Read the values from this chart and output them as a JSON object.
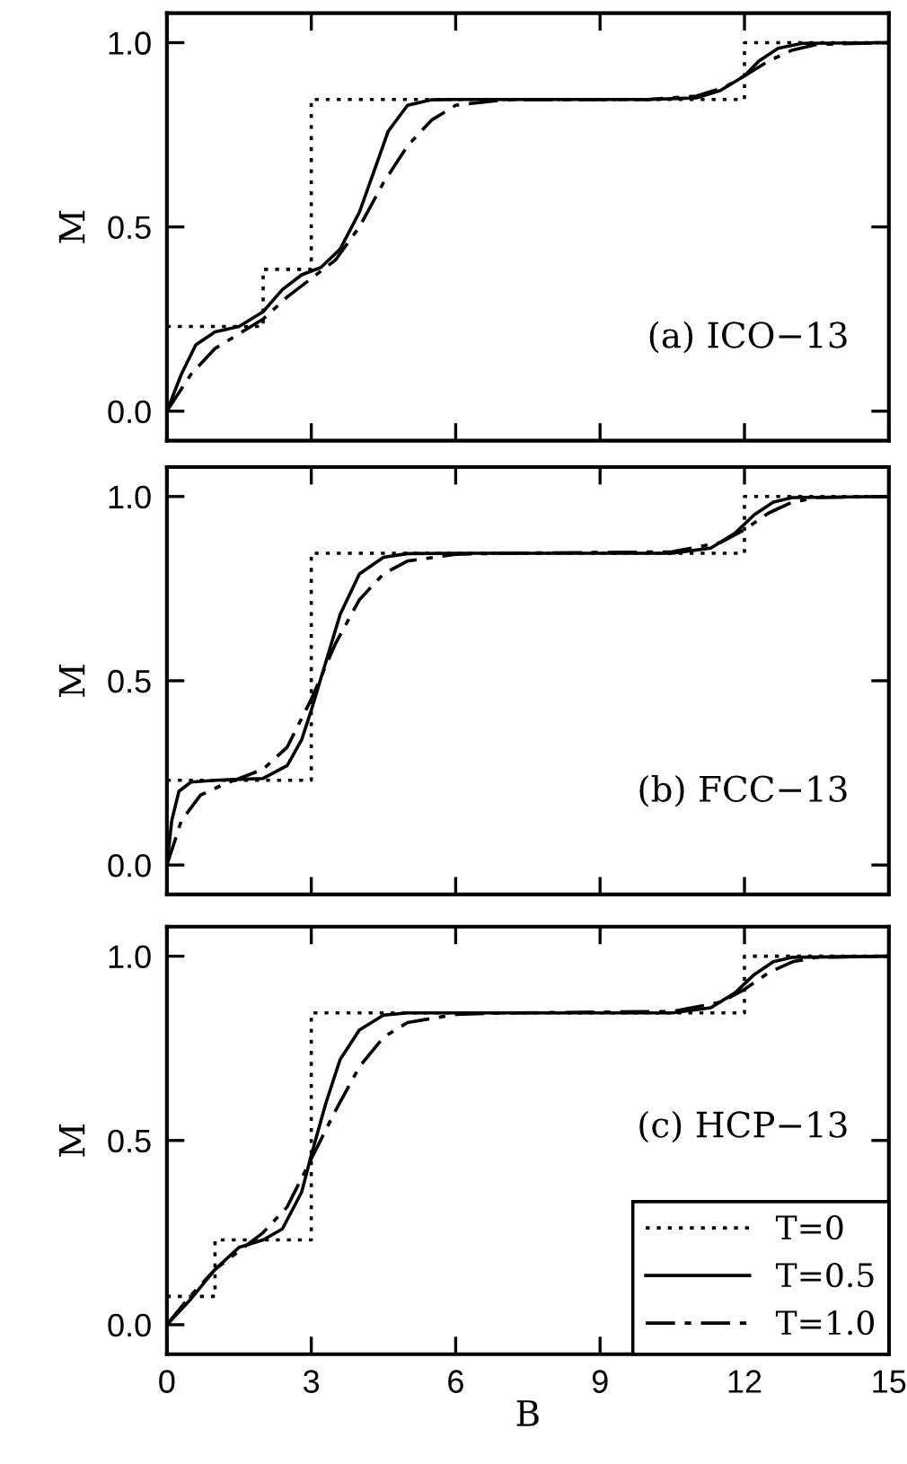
{
  "chart_data": [
    {
      "type": "line",
      "ylabel": "M",
      "xlim": [
        0,
        15
      ],
      "ylim": [
        -0.08,
        1.08
      ],
      "xticks": [
        0,
        3,
        6,
        9,
        12,
        15
      ],
      "yticks": [
        {
          "value": 0,
          "label": "0.0"
        },
        {
          "value": 0.5,
          "label": "0.5"
        },
        {
          "value": 1,
          "label": "1.0"
        }
      ],
      "tick_labels": "y",
      "grid": false,
      "legend": false,
      "annotations": [
        "(a) ICO−13"
      ],
      "series": [
        {
          "type": "step",
          "line_style": "dotted",
          "color": "#000000",
          "x": [
            0,
            2,
            3,
            12,
            15
          ],
          "values": [
            0.23,
            0.385,
            0.846,
            1.0,
            1.0
          ]
        },
        {
          "line_style": "solid",
          "color": "#000000",
          "x": [
            0,
            0.3,
            0.6,
            1,
            1.5,
            2,
            2.4,
            2.8,
            3.2,
            3.6,
            4,
            4.3,
            4.6,
            5,
            5.5,
            6,
            10,
            11,
            11.5,
            12,
            12.3,
            12.7,
            13.2,
            15
          ],
          "values": [
            0,
            0.1,
            0.18,
            0.215,
            0.23,
            0.27,
            0.33,
            0.37,
            0.39,
            0.44,
            0.54,
            0.65,
            0.76,
            0.83,
            0.845,
            0.846,
            0.846,
            0.85,
            0.87,
            0.91,
            0.95,
            0.985,
            0.998,
            1.0
          ]
        },
        {
          "line_style": "dashed",
          "color": "#000000",
          "x": [
            0,
            0.5,
            1,
            1.5,
            2,
            2.5,
            3,
            3.5,
            4,
            4.5,
            5,
            5.5,
            6,
            7,
            10,
            11,
            11.6,
            12,
            12.5,
            13,
            13.5,
            15
          ],
          "values": [
            0,
            0.1,
            0.17,
            0.21,
            0.25,
            0.31,
            0.36,
            0.41,
            0.5,
            0.62,
            0.72,
            0.79,
            0.83,
            0.845,
            0.846,
            0.855,
            0.88,
            0.91,
            0.95,
            0.98,
            0.995,
            1.0
          ]
        }
      ]
    },
    {
      "type": "line",
      "ylabel": "M",
      "xlim": [
        0,
        15
      ],
      "ylim": [
        -0.08,
        1.08
      ],
      "xticks": [
        0,
        3,
        6,
        9,
        12,
        15
      ],
      "yticks": [
        {
          "value": 0,
          "label": "0.0"
        },
        {
          "value": 0.5,
          "label": "0.5"
        },
        {
          "value": 1,
          "label": "1.0"
        }
      ],
      "tick_labels": "y",
      "grid": false,
      "legend": false,
      "annotations": [
        "(b) FCC−13"
      ],
      "series": [
        {
          "type": "step",
          "line_style": "dotted",
          "color": "#000000",
          "x": [
            0,
            3,
            12,
            15
          ],
          "values": [
            0.23,
            0.846,
            1.0,
            1.0
          ]
        },
        {
          "line_style": "solid",
          "color": "#000000",
          "x": [
            0,
            0.1,
            0.25,
            0.5,
            1,
            2,
            2.5,
            2.8,
            3,
            3.3,
            3.6,
            4,
            4.5,
            5,
            6,
            10.5,
            11.3,
            11.8,
            12.2,
            12.6,
            13,
            15
          ],
          "values": [
            0,
            0.12,
            0.2,
            0.225,
            0.23,
            0.235,
            0.27,
            0.34,
            0.42,
            0.55,
            0.68,
            0.79,
            0.835,
            0.845,
            0.846,
            0.846,
            0.86,
            0.9,
            0.95,
            0.985,
            0.997,
            1.0
          ]
        },
        {
          "line_style": "dashed",
          "color": "#000000",
          "x": [
            0,
            0.3,
            0.7,
            1.2,
            2,
            2.5,
            3,
            3.5,
            4,
            4.5,
            5,
            6,
            7,
            10.5,
            11.5,
            12,
            12.5,
            13,
            13.5,
            15
          ],
          "values": [
            0,
            0.12,
            0.19,
            0.22,
            0.26,
            0.32,
            0.45,
            0.6,
            0.72,
            0.79,
            0.825,
            0.843,
            0.846,
            0.85,
            0.875,
            0.91,
            0.955,
            0.985,
            0.997,
            1.0
          ]
        }
      ]
    },
    {
      "type": "line",
      "xlabel": "B",
      "ylabel": "M",
      "xlim": [
        0,
        15
      ],
      "ylim": [
        -0.08,
        1.08
      ],
      "xticks": [
        0,
        3,
        6,
        9,
        12,
        15
      ],
      "yticks": [
        {
          "value": 0,
          "label": "0.0"
        },
        {
          "value": 0.5,
          "label": "0.5"
        },
        {
          "value": 1,
          "label": "1.0"
        }
      ],
      "grid": false,
      "legend": "bottom right",
      "annotations": [
        "(c) HCP−13"
      ],
      "series": [
        {
          "name": "T=0",
          "type": "step",
          "line_style": "dotted",
          "color": "#000000",
          "x": [
            0,
            1,
            3,
            12,
            15
          ],
          "values": [
            0.077,
            0.23,
            0.846,
            1.0,
            1.0
          ]
        },
        {
          "name": "T=0.5",
          "line_style": "solid",
          "color": "#000000",
          "x": [
            0,
            0.5,
            1,
            1.5,
            2,
            2.4,
            2.8,
            3,
            3.3,
            3.6,
            4,
            4.5,
            5,
            10.5,
            11.3,
            11.8,
            12.2,
            12.6,
            13,
            15
          ],
          "values": [
            0,
            0.07,
            0.15,
            0.21,
            0.23,
            0.26,
            0.36,
            0.46,
            0.6,
            0.72,
            0.8,
            0.84,
            0.846,
            0.846,
            0.86,
            0.9,
            0.95,
            0.985,
            0.997,
            1.0
          ]
        },
        {
          "name": "T=1.0",
          "line_style": "dashed",
          "color": "#000000",
          "x": [
            0,
            0.5,
            1,
            1.5,
            2,
            2.5,
            3,
            3.5,
            4,
            4.5,
            5,
            6,
            7,
            10.5,
            11.5,
            12,
            12.5,
            13,
            13.5,
            15
          ],
          "values": [
            0,
            0.08,
            0.15,
            0.2,
            0.25,
            0.32,
            0.45,
            0.58,
            0.7,
            0.78,
            0.82,
            0.842,
            0.846,
            0.85,
            0.875,
            0.91,
            0.955,
            0.985,
            0.997,
            1.0
          ]
        }
      ]
    }
  ]
}
